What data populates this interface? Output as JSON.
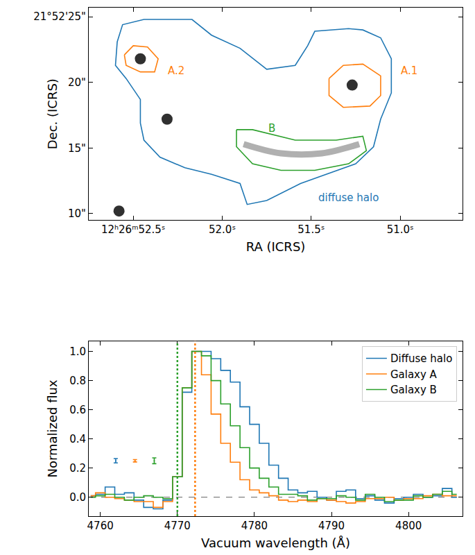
{
  "chart_data": [
    {
      "type": "contour_map",
      "x_label": "RA (ICRS)",
      "y_label": "Dec. (ICRS)",
      "xlim": [
        52.75,
        50.65
      ],
      "ylim": [
        9.5,
        25.7
      ],
      "xticks": [
        {
          "value": 52.5,
          "label": "12ʰ26ᵐ52.5ˢ"
        },
        {
          "value": 52.0,
          "label": "52.0ˢ"
        },
        {
          "value": 51.5,
          "label": "51.5ˢ"
        },
        {
          "value": 51.0,
          "label": "51.0ˢ"
        }
      ],
      "yticks": [
        {
          "value": 10,
          "label": "10\""
        },
        {
          "value": 15,
          "label": "15\""
        },
        {
          "value": 20,
          "label": "20\""
        },
        {
          "value": 25,
          "label": "21°52'25\""
        }
      ],
      "grid": false,
      "sources": {
        "ra": [
          51.27,
          52.46,
          52.31,
          52.58
        ],
        "dec": [
          19.8,
          21.8,
          17.2,
          10.2
        ]
      },
      "arc": {
        "ra": [
          51.88,
          51.67,
          51.44,
          51.23
        ],
        "dec": [
          15.3,
          14.6,
          14.6,
          15.3
        ]
      },
      "regions": [
        {
          "label": "diffuse halo",
          "color": "#1f77b4",
          "label_ra": 51.29,
          "label_dec": 11.2,
          "ra": [
            52.59,
            52.56,
            52.44,
            52.17,
            52.06,
            51.9,
            51.75,
            51.59,
            51.52,
            51.48,
            51.29,
            51.21,
            51.11,
            51.05,
            51.05,
            51.11,
            51.15,
            51.25,
            51.56,
            51.75,
            51.86,
            51.9,
            52.06,
            52.21,
            52.35,
            52.44,
            52.46,
            52.46,
            52.54,
            52.6
          ],
          "dec": [
            23.1,
            24.4,
            24.8,
            24.8,
            23.6,
            22.6,
            21.0,
            21.3,
            22.8,
            23.9,
            24.1,
            24.0,
            23.4,
            21.8,
            19.2,
            17.2,
            15.1,
            13.8,
            12.3,
            11.0,
            10.7,
            12.3,
            13.0,
            13.5,
            14.3,
            15.6,
            16.9,
            18.7,
            20.3,
            21.3
          ]
        },
        {
          "label": "A.1",
          "color": "#ff7f0e",
          "label_ra": 50.95,
          "label_dec": 20.9,
          "ra": [
            51.4,
            51.32,
            51.21,
            51.11,
            51.11,
            51.17,
            51.32,
            51.4
          ],
          "dec": [
            20.3,
            21.3,
            21.4,
            20.5,
            19.0,
            18.2,
            18.1,
            19.0
          ]
        },
        {
          "label": "A.2",
          "color": "#ff7f0e",
          "label_ra": 52.26,
          "label_dec": 20.9,
          "ra": [
            52.55,
            52.5,
            52.42,
            52.36,
            52.38,
            52.46,
            52.54
          ],
          "dec": [
            22.1,
            22.8,
            22.7,
            21.8,
            20.8,
            20.8,
            21.3
          ]
        },
        {
          "label": "B",
          "color": "#2ca02c",
          "label_ra": 51.72,
          "label_dec": 16.5,
          "ra": [
            51.92,
            51.83,
            51.59,
            51.36,
            51.21,
            51.19,
            51.29,
            51.48,
            51.67,
            51.83,
            51.92
          ],
          "dec": [
            16.4,
            16.4,
            15.6,
            15.6,
            15.9,
            14.8,
            13.8,
            13.3,
            13.3,
            13.8,
            15.1
          ]
        }
      ]
    },
    {
      "type": "line",
      "x_label": "Vacuum wavelength (Å)",
      "y_label": "Normalized flux",
      "xlim": [
        4758.5,
        4807
      ],
      "ylim": [
        -0.13,
        1.07
      ],
      "xticks": [
        4760,
        4770,
        4780,
        4790,
        4800
      ],
      "yticks": [
        {
          "value": 0,
          "label": "0.0"
        },
        0.2,
        0.4,
        0.6,
        0.8,
        {
          "value": 1,
          "label": "1.0"
        }
      ],
      "grid": false,
      "legend": "upper right",
      "line_style": "steps",
      "x": [
        4758.75,
        4760.0,
        4761.25,
        4762.5,
        4763.75,
        4765.0,
        4766.25,
        4767.5,
        4768.75,
        4770.0,
        4771.25,
        4772.5,
        4773.75,
        4775.0,
        4776.25,
        4777.5,
        4778.75,
        4780.0,
        4781.25,
        4782.5,
        4783.75,
        4785.0,
        4786.25,
        4787.5,
        4788.75,
        4790.0,
        4791.25,
        4792.5,
        4793.75,
        4795.0,
        4796.25,
        4797.5,
        4798.75,
        4800.0,
        4801.25,
        4802.5,
        4803.75,
        4805.0,
        4806.25
      ],
      "series": [
        {
          "name": "Diffuse halo",
          "color": "#1f77b4",
          "values": [
            0.01,
            0.02,
            0.07,
            0.02,
            0.03,
            -0.02,
            -0.07,
            -0.08,
            -0.02,
            0.14,
            0.72,
            1.0,
            1.0,
            0.95,
            0.87,
            0.79,
            0.62,
            0.5,
            0.37,
            0.22,
            0.13,
            0.05,
            0.03,
            0.04,
            0.0,
            -0.02,
            0.04,
            0.05,
            -0.01,
            0.01,
            -0.02,
            -0.04,
            -0.01,
            0.0,
            0.02,
            0.0,
            0.01,
            0.06,
            0.0
          ],
          "error_bar": {
            "x": 4762,
            "y": 0.25,
            "error": 0.015
          }
        },
        {
          "name": "Galaxy A",
          "color": "#ff7f0e",
          "values": [
            0.01,
            0.03,
            0.0,
            -0.01,
            -0.02,
            -0.03,
            -0.03,
            -0.07,
            -0.03,
            0.14,
            0.75,
            1.0,
            0.84,
            0.57,
            0.37,
            0.24,
            0.12,
            0.05,
            0.03,
            0.01,
            -0.02,
            -0.03,
            -0.02,
            -0.03,
            -0.01,
            -0.02,
            -0.03,
            -0.04,
            -0.03,
            -0.01,
            -0.01,
            0.0,
            -0.02,
            -0.01,
            -0.01,
            0.01,
            0.02,
            0.01,
            0.01
          ],
          "error_bar": {
            "x": 4764.5,
            "y": 0.25,
            "error": 0.008
          }
        },
        {
          "name": "Galaxy B",
          "color": "#2ca02c",
          "values": [
            0.0,
            0.01,
            0.02,
            0.0,
            -0.02,
            0.0,
            0.01,
            0.0,
            -0.01,
            0.14,
            0.75,
            1.0,
            0.97,
            0.8,
            0.64,
            0.49,
            0.34,
            0.2,
            0.13,
            0.07,
            0.02,
            0.02,
            0.01,
            -0.02,
            -0.01,
            -0.01,
            0.01,
            0.0,
            -0.02,
            0.02,
            0.0,
            -0.03,
            -0.02,
            -0.02,
            0.01,
            0.0,
            0.02,
            0.04,
            0.02
          ],
          "error_bar": {
            "x": 4767,
            "y": 0.25,
            "error": 0.02
          }
        }
      ],
      "vertical_lines": [
        {
          "x": 4770.0,
          "color": "#2ca02c",
          "line_style": "dotted"
        },
        {
          "x": 4772.3,
          "color": "#ff7f0e",
          "line_style": "dotted"
        }
      ],
      "horizontal_lines": [
        {
          "y": 0,
          "color": "#808080",
          "line_style": "dashed"
        }
      ]
    }
  ]
}
